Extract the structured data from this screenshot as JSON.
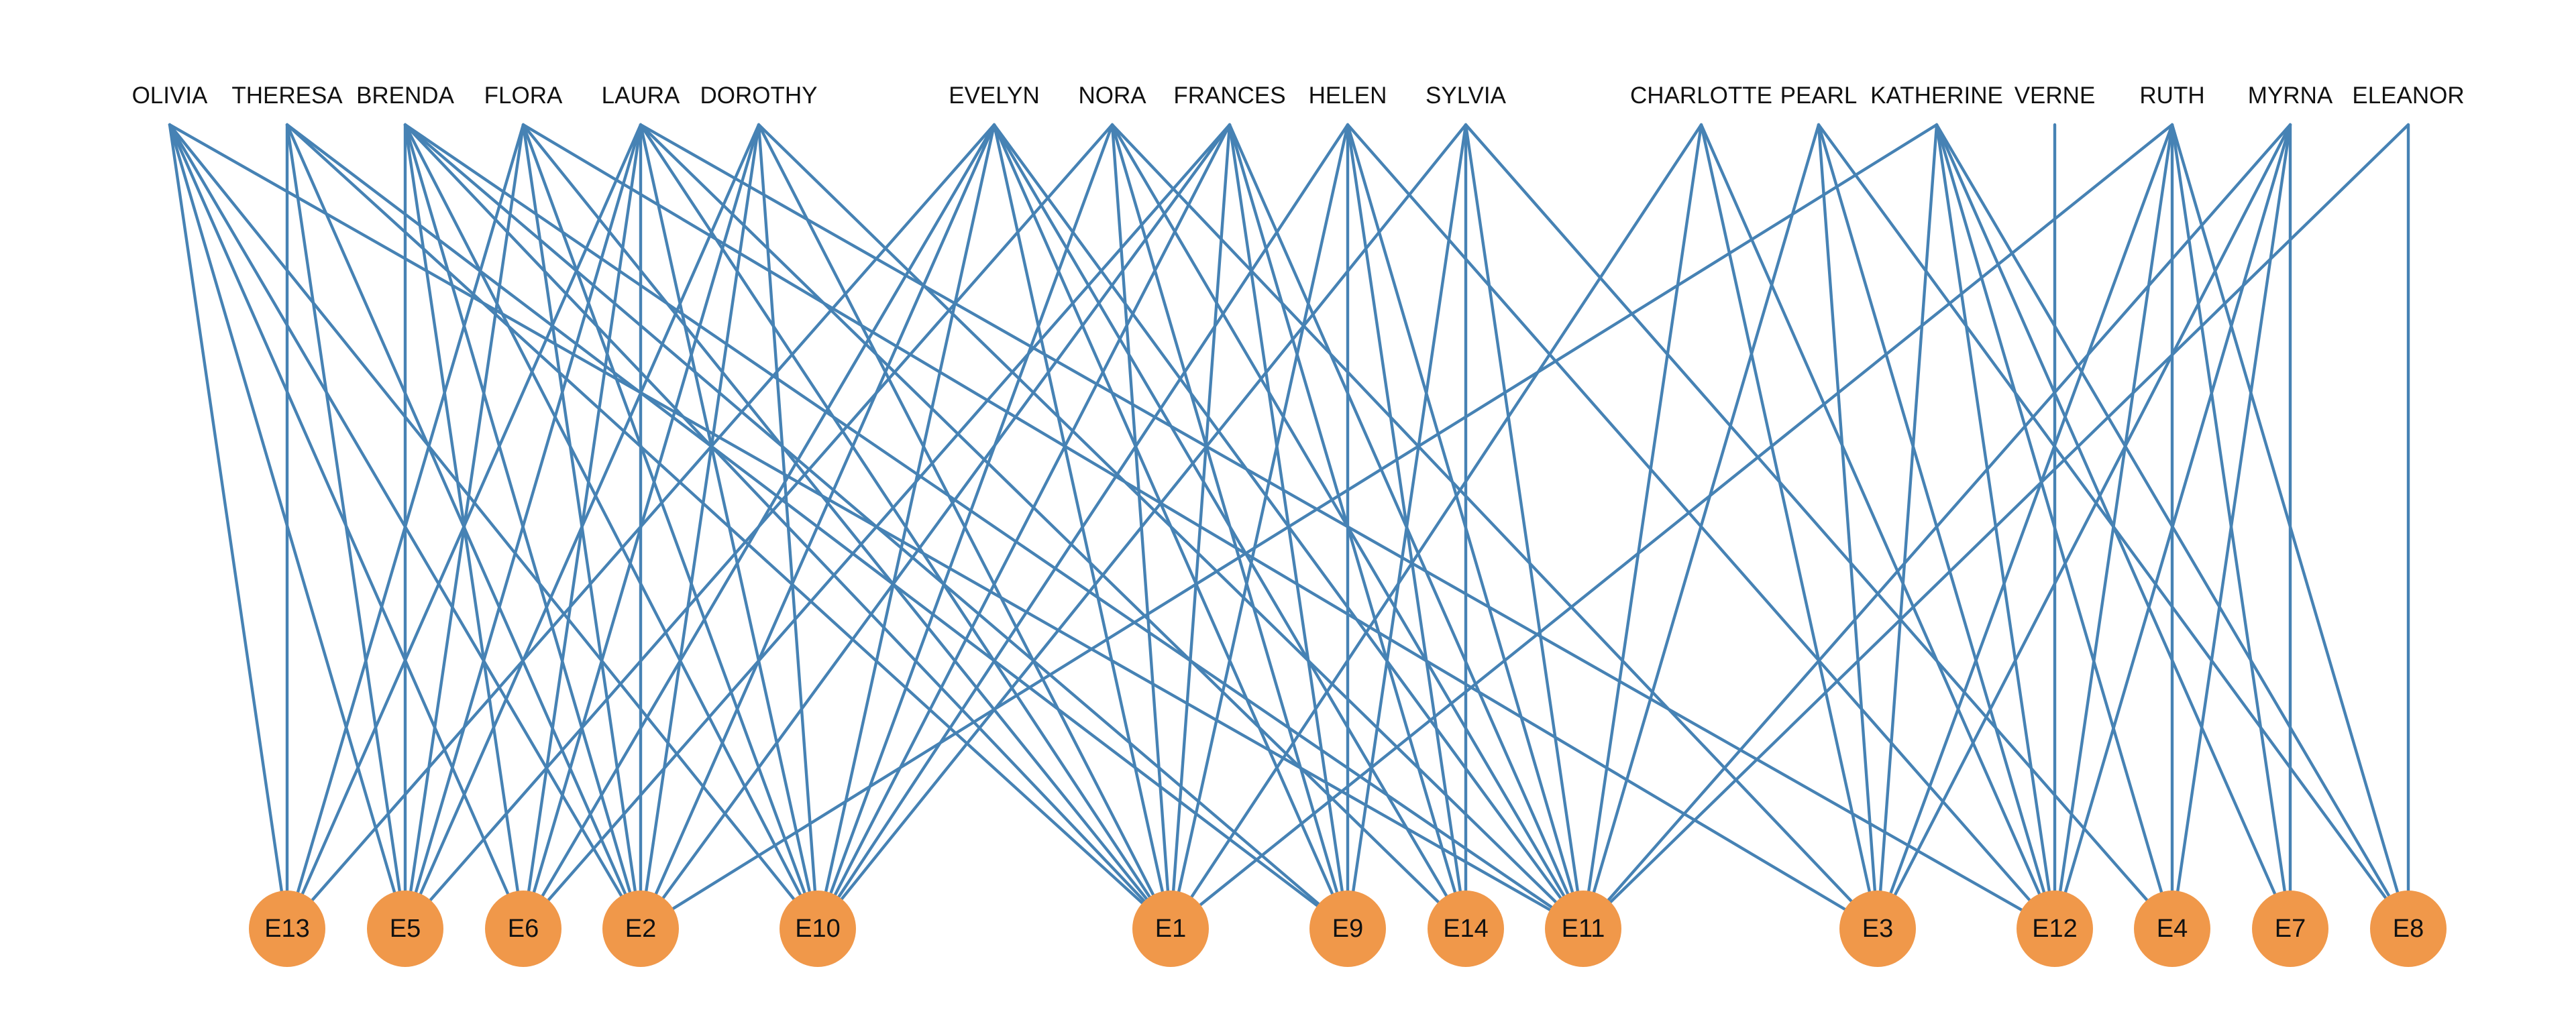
{
  "colors": {
    "edge": "#4682B4",
    "event_node": "#F0984A",
    "label": "#111111",
    "background": "#FFFFFF"
  },
  "people": [
    "OLIVIA",
    "THERESA",
    "BRENDA",
    "FLORA",
    "LAURA",
    "DOROTHY",
    "EVELYN",
    "NORA",
    "FRANCES",
    "HELEN",
    "SYLVIA",
    "CHARLOTTE",
    "PEARL",
    "KATHERINE",
    "VERNE",
    "RUTH",
    "MYRNA",
    "ELEANOR"
  ],
  "events": [
    "E13",
    "E5",
    "E6",
    "E2",
    "E10",
    "E1",
    "E9",
    "E14",
    "E11",
    "E3",
    "E12",
    "E4",
    "E7",
    "E8"
  ],
  "edges": [
    [
      "OLIVIA",
      "E13"
    ],
    [
      "OLIVIA",
      "E5"
    ],
    [
      "OLIVIA",
      "E6"
    ],
    [
      "OLIVIA",
      "E2"
    ],
    [
      "OLIVIA",
      "E10"
    ],
    [
      "OLIVIA",
      "E11"
    ],
    [
      "THERESA",
      "E13"
    ],
    [
      "THERESA",
      "E5"
    ],
    [
      "THERESA",
      "E2"
    ],
    [
      "THERESA",
      "E1"
    ],
    [
      "THERESA",
      "E9"
    ],
    [
      "BRENDA",
      "E5"
    ],
    [
      "BRENDA",
      "E6"
    ],
    [
      "BRENDA",
      "E2"
    ],
    [
      "BRENDA",
      "E10"
    ],
    [
      "BRENDA",
      "E1"
    ],
    [
      "BRENDA",
      "E9"
    ],
    [
      "BRENDA",
      "E11"
    ],
    [
      "FLORA",
      "E13"
    ],
    [
      "FLORA",
      "E5"
    ],
    [
      "FLORA",
      "E2"
    ],
    [
      "FLORA",
      "E10"
    ],
    [
      "FLORA",
      "E1"
    ],
    [
      "FLORA",
      "E3"
    ],
    [
      "LAURA",
      "E13"
    ],
    [
      "LAURA",
      "E5"
    ],
    [
      "LAURA",
      "E6"
    ],
    [
      "LAURA",
      "E2"
    ],
    [
      "LAURA",
      "E10"
    ],
    [
      "LAURA",
      "E1"
    ],
    [
      "LAURA",
      "E14"
    ],
    [
      "LAURA",
      "E12"
    ],
    [
      "DOROTHY",
      "E5"
    ],
    [
      "DOROTHY",
      "E6"
    ],
    [
      "DOROTHY",
      "E2"
    ],
    [
      "DOROTHY",
      "E10"
    ],
    [
      "DOROTHY",
      "E1"
    ],
    [
      "DOROTHY",
      "E11"
    ],
    [
      "EVELYN",
      "E13"
    ],
    [
      "EVELYN",
      "E6"
    ],
    [
      "EVELYN",
      "E2"
    ],
    [
      "EVELYN",
      "E10"
    ],
    [
      "EVELYN",
      "E1"
    ],
    [
      "EVELYN",
      "E9"
    ],
    [
      "EVELYN",
      "E14"
    ],
    [
      "EVELYN",
      "E11"
    ],
    [
      "NORA",
      "E5"
    ],
    [
      "NORA",
      "E10"
    ],
    [
      "NORA",
      "E1"
    ],
    [
      "NORA",
      "E9"
    ],
    [
      "NORA",
      "E11"
    ],
    [
      "NORA",
      "E3"
    ],
    [
      "FRANCES",
      "E6"
    ],
    [
      "FRANCES",
      "E2"
    ],
    [
      "FRANCES",
      "E10"
    ],
    [
      "FRANCES",
      "E1"
    ],
    [
      "FRANCES",
      "E9"
    ],
    [
      "FRANCES",
      "E14"
    ],
    [
      "FRANCES",
      "E11"
    ],
    [
      "HELEN",
      "E10"
    ],
    [
      "HELEN",
      "E1"
    ],
    [
      "HELEN",
      "E9"
    ],
    [
      "HELEN",
      "E14"
    ],
    [
      "HELEN",
      "E11"
    ],
    [
      "HELEN",
      "E12"
    ],
    [
      "SYLVIA",
      "E10"
    ],
    [
      "SYLVIA",
      "E9"
    ],
    [
      "SYLVIA",
      "E14"
    ],
    [
      "SYLVIA",
      "E11"
    ],
    [
      "SYLVIA",
      "E4"
    ],
    [
      "CHARLOTTE",
      "E1"
    ],
    [
      "CHARLOTTE",
      "E11"
    ],
    [
      "CHARLOTTE",
      "E3"
    ],
    [
      "CHARLOTTE",
      "E12"
    ],
    [
      "PEARL",
      "E11"
    ],
    [
      "PEARL",
      "E3"
    ],
    [
      "PEARL",
      "E12"
    ],
    [
      "PEARL",
      "E8"
    ],
    [
      "KATHERINE",
      "E2"
    ],
    [
      "KATHERINE",
      "E3"
    ],
    [
      "KATHERINE",
      "E12"
    ],
    [
      "KATHERINE",
      "E4"
    ],
    [
      "KATHERINE",
      "E7"
    ],
    [
      "KATHERINE",
      "E8"
    ],
    [
      "VERNE",
      "E12"
    ],
    [
      "RUTH",
      "E1"
    ],
    [
      "RUTH",
      "E3"
    ],
    [
      "RUTH",
      "E12"
    ],
    [
      "RUTH",
      "E4"
    ],
    [
      "RUTH",
      "E7"
    ],
    [
      "RUTH",
      "E8"
    ],
    [
      "MYRNA",
      "E11"
    ],
    [
      "MYRNA",
      "E3"
    ],
    [
      "MYRNA",
      "E12"
    ],
    [
      "MYRNA",
      "E4"
    ],
    [
      "MYRNA",
      "E7"
    ],
    [
      "ELEANOR",
      "E11"
    ],
    [
      "ELEANOR",
      "E8"
    ]
  ]
}
